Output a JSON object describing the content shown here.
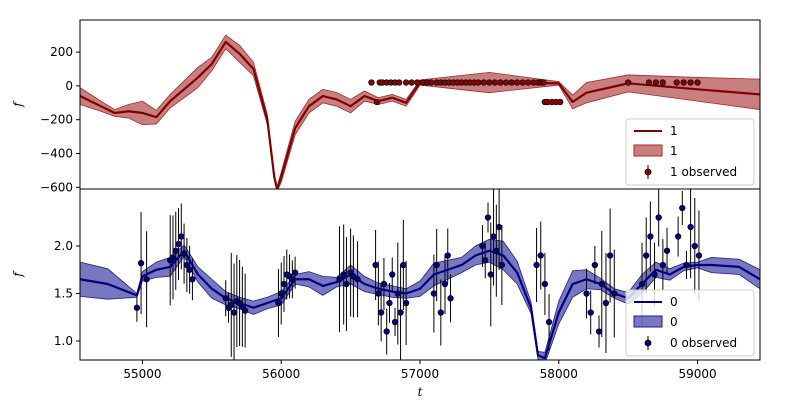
{
  "chart_data": [
    {
      "type": "line",
      "panel": "top",
      "xlabel": "",
      "ylabel": "f",
      "xlim": [
        54550,
        59450
      ],
      "ylim": [
        -610,
        390
      ],
      "yticks": [
        200,
        0,
        -200,
        -400,
        -600
      ],
      "xticks": [],
      "line_color": "#800000",
      "band_color": "#a52a2a",
      "point_color": "#8b0000",
      "legend_position": "lower-right",
      "legend": {
        "line": "1",
        "band": "1",
        "points": "1 observed"
      },
      "series": [
        {
          "name": "1",
          "x": [
            54550,
            54700,
            54800,
            54900,
            55000,
            55100,
            55200,
            55300,
            55400,
            55500,
            55600,
            55700,
            55800,
            55900,
            55950,
            55970,
            56000,
            56100,
            56200,
            56300,
            56400,
            56500,
            56600,
            56700,
            56800,
            56900,
            57000,
            57500,
            58000,
            58100,
            58200,
            58500,
            59000,
            59450
          ],
          "y": [
            -60,
            -120,
            -160,
            -150,
            -160,
            -185,
            -90,
            -20,
            50,
            130,
            260,
            190,
            100,
            -200,
            -540,
            -610,
            -540,
            -250,
            -120,
            -60,
            -80,
            -120,
            -60,
            -90,
            -70,
            -100,
            20,
            20,
            15,
            -95,
            -40,
            15,
            -20,
            -50
          ],
          "band_half_width": [
            50,
            30,
            20,
            40,
            70,
            40,
            40,
            50,
            60,
            40,
            40,
            50,
            40,
            30,
            15,
            15,
            30,
            40,
            40,
            40,
            40,
            40,
            30,
            20,
            20,
            20,
            15,
            60,
            10,
            40,
            60,
            50,
            70,
            90
          ]
        }
      ],
      "observed": {
        "x": [
          56650,
          56690,
          56710,
          56730,
          56760,
          56790,
          56820,
          56850,
          56900,
          56940,
          56980,
          57020,
          57050,
          57080,
          57120,
          57150,
          57180,
          57210,
          57240,
          57270,
          57300,
          57330,
          57360,
          57390,
          57420,
          57460,
          57500,
          57540,
          57580,
          57620,
          57660,
          57700,
          57740,
          57780,
          57820,
          57850,
          57870,
          57890,
          57900,
          57920,
          57950,
          57980,
          58010,
          58500,
          58650,
          58700,
          58750,
          58850,
          58900,
          58950,
          59000
        ],
        "y": [
          20,
          -95,
          20,
          20,
          20,
          20,
          20,
          20,
          20,
          20,
          20,
          20,
          20,
          20,
          20,
          20,
          20,
          20,
          20,
          20,
          20,
          20,
          20,
          20,
          20,
          20,
          20,
          20,
          20,
          20,
          20,
          20,
          20,
          20,
          20,
          20,
          20,
          20,
          -95,
          -95,
          -95,
          -95,
          -95,
          20,
          20,
          20,
          20,
          20,
          20,
          20,
          20
        ]
      }
    },
    {
      "type": "line",
      "panel": "bottom",
      "xlabel": "t",
      "ylabel": "f",
      "xlim": [
        54550,
        59450
      ],
      "ylim": [
        0.8,
        2.6
      ],
      "yticks": [
        2.0,
        1.5,
        1.0
      ],
      "xticks": [
        55000,
        56000,
        57000,
        58000,
        59000
      ],
      "line_color": "#000080",
      "band_color": "#1e1e96",
      "point_color": "#000080",
      "legend_position": "lower-right",
      "legend": {
        "line": "0",
        "band": "0",
        "points": "0 observed"
      },
      "series": [
        {
          "name": "0",
          "x": [
            54550,
            54750,
            54960,
            55000,
            55100,
            55200,
            55300,
            55400,
            55500,
            55600,
            55700,
            55800,
            55900,
            56000,
            56100,
            56200,
            56300,
            56400,
            56500,
            56600,
            56700,
            56800,
            56900,
            57000,
            57100,
            57200,
            57300,
            57400,
            57500,
            57600,
            57700,
            57800,
            57850,
            57900,
            58000,
            58100,
            58200,
            58300,
            58400,
            58500,
            58600,
            58700,
            58800,
            58900,
            59000,
            59100,
            59300,
            59450
          ],
          "y": [
            1.65,
            1.6,
            1.48,
            1.68,
            1.75,
            1.78,
            1.95,
            1.7,
            1.55,
            1.45,
            1.4,
            1.35,
            1.4,
            1.45,
            1.65,
            1.65,
            1.58,
            1.62,
            1.7,
            1.6,
            1.55,
            1.52,
            1.5,
            1.55,
            1.7,
            1.75,
            1.8,
            1.9,
            1.95,
            1.9,
            1.72,
            1.35,
            0.85,
            0.82,
            1.3,
            1.6,
            1.65,
            1.6,
            1.5,
            1.45,
            1.6,
            1.75,
            1.7,
            1.78,
            1.8,
            1.8,
            1.78,
            1.65
          ],
          "band_half_width": [
            0.18,
            0.16,
            0.02,
            0.05,
            0.08,
            0.1,
            0.06,
            0.08,
            0.1,
            0.07,
            0.06,
            0.07,
            0.06,
            0.07,
            0.05,
            0.08,
            0.1,
            0.05,
            0.1,
            0.08,
            0.06,
            0.06,
            0.05,
            0.08,
            0.12,
            0.1,
            0.08,
            0.1,
            0.12,
            0.15,
            0.12,
            0.06,
            0.04,
            0.06,
            0.12,
            0.14,
            0.1,
            0.06,
            0.05,
            0.06,
            0.1,
            0.08,
            0.06,
            0.04,
            0.03,
            0.08,
            0.08,
            0.1
          ]
        }
      ],
      "observed": {
        "x": [
          54960,
          54990,
          55030,
          55200,
          55220,
          55240,
          55260,
          55280,
          55300,
          55320,
          55340,
          55360,
          55600,
          55620,
          55640,
          55660,
          55680,
          55700,
          55720,
          55740,
          55980,
          56000,
          56020,
          56040,
          56060,
          56080,
          56100,
          56420,
          56450,
          56470,
          56500,
          56520,
          56550,
          56680,
          56700,
          56720,
          56740,
          56760,
          56780,
          56800,
          56820,
          56840,
          56860,
          56880,
          56900,
          57100,
          57120,
          57150,
          57180,
          57200,
          57220,
          57450,
          57470,
          57490,
          57510,
          57530,
          57550,
          57570,
          57590,
          57840,
          57870,
          57900,
          57930,
          58200,
          58230,
          58260,
          58290,
          58310,
          58340,
          58370,
          58400,
          58600,
          58630,
          58660,
          58690,
          58720,
          58750,
          58780,
          58860,
          58890,
          58920,
          58950,
          58980,
          59010
        ],
        "y": [
          1.35,
          1.82,
          1.65,
          1.85,
          1.88,
          1.95,
          2.02,
          2.1,
          1.92,
          1.8,
          1.75,
          1.65,
          1.45,
          1.35,
          1.38,
          1.3,
          1.42,
          1.4,
          1.36,
          1.32,
          1.4,
          1.5,
          1.6,
          1.7,
          1.68,
          1.65,
          1.72,
          1.65,
          1.7,
          1.6,
          1.72,
          1.68,
          1.65,
          1.8,
          1.5,
          1.3,
          1.6,
          1.1,
          1.4,
          1.7,
          1.2,
          1.5,
          1.3,
          1.8,
          1.4,
          1.5,
          1.8,
          1.3,
          1.6,
          1.9,
          1.45,
          2.0,
          1.85,
          2.3,
          1.7,
          2.1,
          1.95,
          2.2,
          1.8,
          1.8,
          1.9,
          1.6,
          1.2,
          1.5,
          1.3,
          1.8,
          1.1,
          1.6,
          1.4,
          1.9,
          1.5,
          1.6,
          1.9,
          2.1,
          1.7,
          2.3,
          1.8,
          1.95,
          2.1,
          2.4,
          1.8,
          2.2,
          2.0,
          1.9
        ]
      }
    }
  ]
}
